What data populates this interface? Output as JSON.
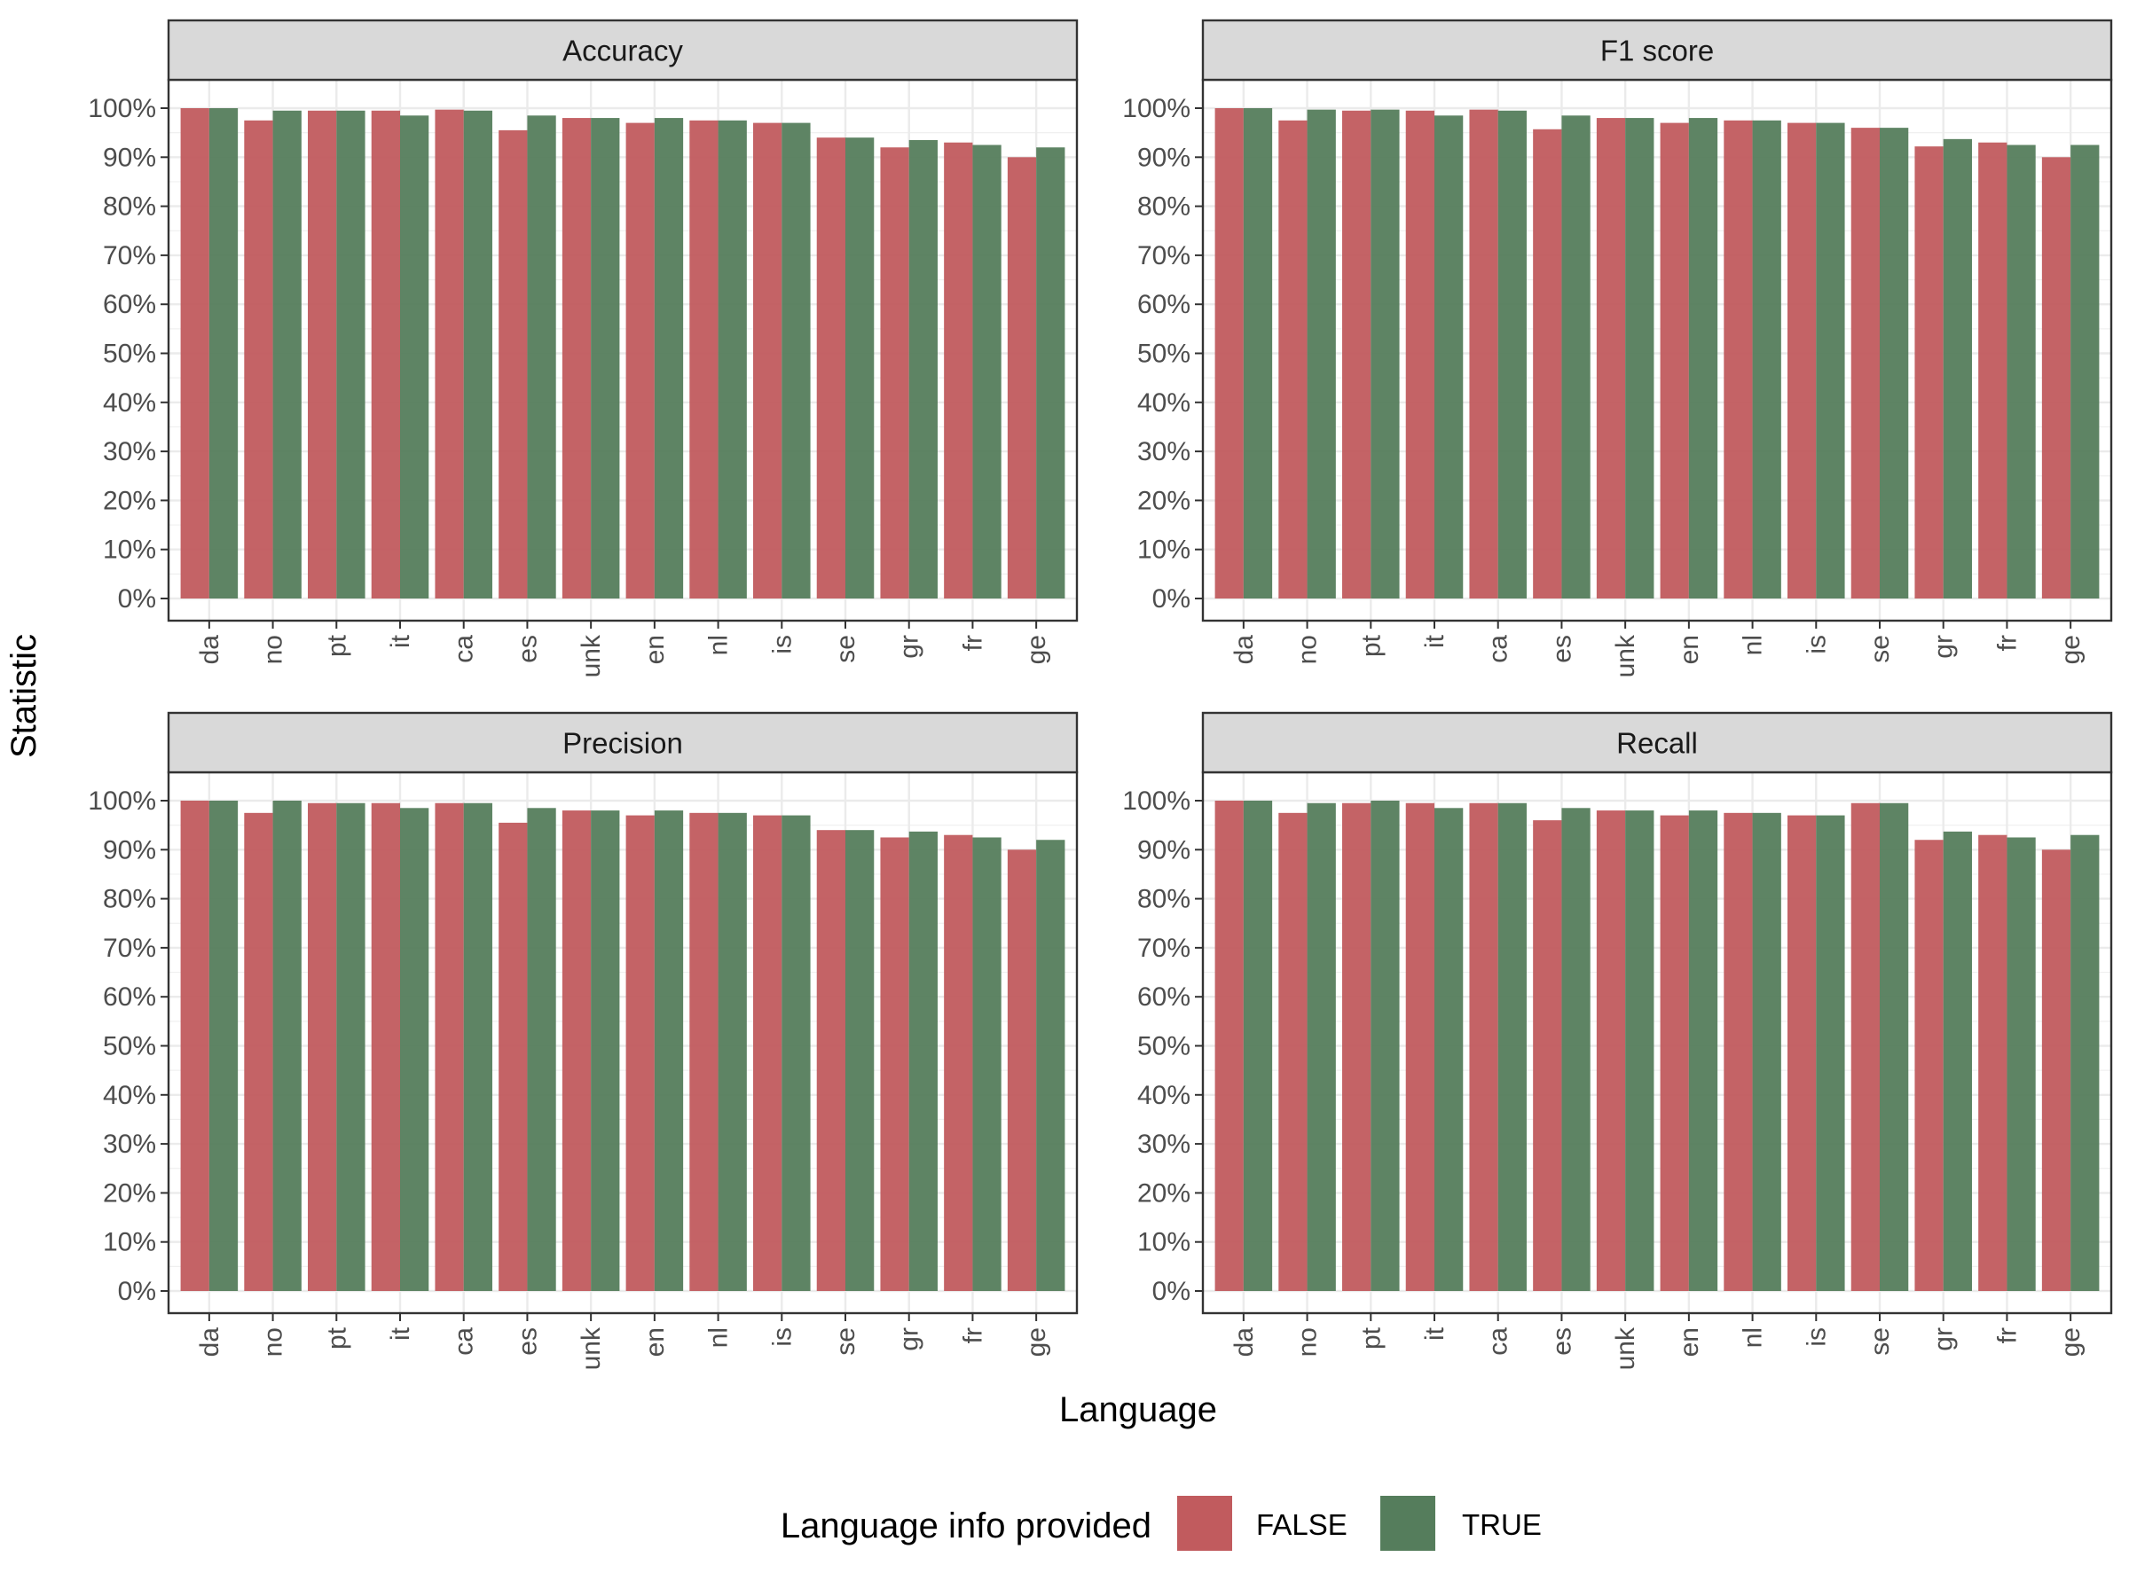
{
  "xlabel": "Language",
  "ylabel": "Statistic",
  "legend": {
    "title": "Language info provided",
    "placement": "bottom",
    "items": [
      {
        "label": "FALSE",
        "color": "#c15b5e"
      },
      {
        "label": "TRUE",
        "color": "#557d5c"
      }
    ]
  },
  "chart_data": [
    {
      "type": "bar",
      "title": "Accuracy",
      "categories": [
        "da",
        "no",
        "pt",
        "it",
        "ca",
        "es",
        "unk",
        "en",
        "nl",
        "is",
        "se",
        "gr",
        "fr",
        "ge"
      ],
      "ylim": [
        0,
        1
      ],
      "y_ticks": [
        "0%",
        "10%",
        "20%",
        "30%",
        "40%",
        "50%",
        "60%",
        "70%",
        "80%",
        "90%",
        "100%"
      ],
      "grid": true,
      "series": [
        {
          "name": "FALSE",
          "values": [
            1.0,
            0.975,
            0.995,
            0.995,
            0.997,
            0.955,
            0.98,
            0.97,
            0.975,
            0.97,
            0.94,
            0.92,
            0.93,
            0.9
          ]
        },
        {
          "name": "TRUE",
          "values": [
            1.0,
            0.995,
            0.995,
            0.985,
            0.995,
            0.985,
            0.98,
            0.98,
            0.975,
            0.97,
            0.94,
            0.935,
            0.925,
            0.92
          ]
        }
      ]
    },
    {
      "type": "bar",
      "title": "F1 score",
      "categories": [
        "da",
        "no",
        "pt",
        "it",
        "ca",
        "es",
        "unk",
        "en",
        "nl",
        "is",
        "se",
        "gr",
        "fr",
        "ge"
      ],
      "ylim": [
        0,
        1
      ],
      "y_ticks": [
        "0%",
        "10%",
        "20%",
        "30%",
        "40%",
        "50%",
        "60%",
        "70%",
        "80%",
        "90%",
        "100%"
      ],
      "grid": true,
      "series": [
        {
          "name": "FALSE",
          "values": [
            1.0,
            0.975,
            0.995,
            0.995,
            0.997,
            0.957,
            0.98,
            0.97,
            0.975,
            0.97,
            0.96,
            0.922,
            0.93,
            0.9
          ]
        },
        {
          "name": "TRUE",
          "values": [
            1.0,
            0.997,
            0.997,
            0.985,
            0.995,
            0.985,
            0.98,
            0.98,
            0.975,
            0.97,
            0.96,
            0.937,
            0.925,
            0.925
          ]
        }
      ]
    },
    {
      "type": "bar",
      "title": "Precision",
      "categories": [
        "da",
        "no",
        "pt",
        "it",
        "ca",
        "es",
        "unk",
        "en",
        "nl",
        "is",
        "se",
        "gr",
        "fr",
        "ge"
      ],
      "ylim": [
        0,
        1
      ],
      "y_ticks": [
        "0%",
        "10%",
        "20%",
        "30%",
        "40%",
        "50%",
        "60%",
        "70%",
        "80%",
        "90%",
        "100%"
      ],
      "grid": true,
      "series": [
        {
          "name": "FALSE",
          "values": [
            1.0,
            0.975,
            0.995,
            0.995,
            0.995,
            0.955,
            0.98,
            0.97,
            0.975,
            0.97,
            0.94,
            0.925,
            0.93,
            0.9
          ]
        },
        {
          "name": "TRUE",
          "values": [
            1.0,
            1.0,
            0.995,
            0.985,
            0.995,
            0.985,
            0.98,
            0.98,
            0.975,
            0.97,
            0.94,
            0.937,
            0.925,
            0.92
          ]
        }
      ]
    },
    {
      "type": "bar",
      "title": "Recall",
      "categories": [
        "da",
        "no",
        "pt",
        "it",
        "ca",
        "es",
        "unk",
        "en",
        "nl",
        "is",
        "se",
        "gr",
        "fr",
        "ge"
      ],
      "ylim": [
        0,
        1
      ],
      "y_ticks": [
        "0%",
        "10%",
        "20%",
        "30%",
        "40%",
        "50%",
        "60%",
        "70%",
        "80%",
        "90%",
        "100%"
      ],
      "grid": true,
      "series": [
        {
          "name": "FALSE",
          "values": [
            1.0,
            0.975,
            0.995,
            0.995,
            0.995,
            0.96,
            0.98,
            0.97,
            0.975,
            0.97,
            0.995,
            0.92,
            0.93,
            0.9
          ]
        },
        {
          "name": "TRUE",
          "values": [
            1.0,
            0.995,
            1.0,
            0.985,
            0.995,
            0.985,
            0.98,
            0.98,
            0.975,
            0.97,
            0.995,
            0.937,
            0.925,
            0.93
          ]
        }
      ]
    }
  ]
}
